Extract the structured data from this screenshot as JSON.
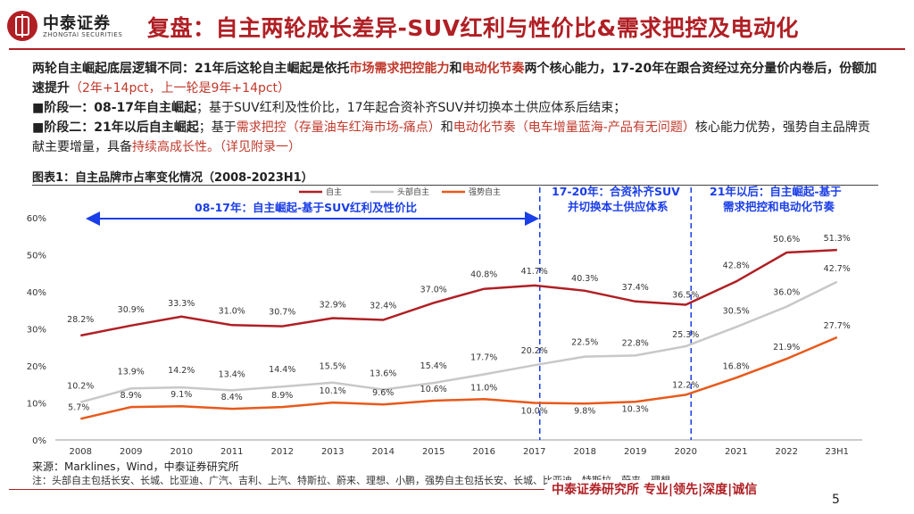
{
  "brand": {
    "name_cn": "中泰证券",
    "name_en": "ZHONGTAI SECURITIES"
  },
  "header": {
    "title": "复盘：自主两轮成长差异-SUV红利与性价比&需求把控及电动化"
  },
  "colors": {
    "accent": "#b01f24",
    "series_main": "#b01f24",
    "series_head": "#c8c8c8",
    "series_strong": "#e8591a",
    "annotation_blue": "#1a3ee8"
  },
  "body": {
    "p1_a": "两轮自主崛起底层逻辑不同：21年后这轮自主崛起是依托",
    "p1_b": "市场需求把控能力",
    "p1_c": "和",
    "p1_d": "电动化节奏",
    "p1_e": "两个核心能力，17-20年在跟合资经过充分量价内卷后，份额加速提升",
    "p1_f": "（2年+14pct，上一轮是9年+14pct）",
    "p2_bullet": "■",
    "p2_a": "阶段一：08-17年自主崛起",
    "p2_b": "；基于SUV红利及性价比，17年起合资补齐SUV并切换本土供应体系后结束；",
    "p3_bullet": "■",
    "p3_a": "阶段二：21年以后自主崛起",
    "p3_b": "；基于",
    "p3_c": "需求把控（存量油车红海市场-痛点）",
    "p3_d": "和",
    "p3_e": "电动化节奏（电车增量蓝海-产品有无问题）",
    "p3_f": "核心能力优势，强势自主品牌贡献主要增量，具备",
    "p3_g": "持续高成长性",
    "p3_h": "。（详见附录一）"
  },
  "figure": {
    "title": "图表1：自主品牌市占率变化情况（2008-2023H1）"
  },
  "annotations": {
    "phase1": "08-17年：自主崛起-基于SUV红利及性价比",
    "phase2_l1": "17-20年：合资补齐SUV",
    "phase2_l2": "并切换本土供应体系",
    "phase3_l1": "21年以后：自主崛起-基于",
    "phase3_l2": "需求把控和电动化节奏"
  },
  "chart_data": {
    "type": "line",
    "title": "图表1：自主品牌市占率变化情况（2008-2023H1）",
    "categories": [
      "2008",
      "2009",
      "2010",
      "2011",
      "2012",
      "2013",
      "2014",
      "2015",
      "2016",
      "2017",
      "2018",
      "2019",
      "2020",
      "2021",
      "2022",
      "23H1"
    ],
    "series": [
      {
        "name": "自主",
        "color": "#b01f24",
        "values": [
          28.2,
          30.9,
          33.3,
          31.0,
          30.7,
          32.9,
          32.4,
          37.0,
          40.8,
          41.7,
          40.3,
          37.4,
          36.5,
          42.8,
          50.6,
          51.3
        ],
        "labels": [
          "28.2%",
          "30.9%",
          "33.3%",
          "31.0%",
          "30.7%",
          "32.9%",
          "32.4%",
          "37.0%",
          "40.8%",
          "41.7%",
          "40.3%",
          "37.4%",
          "36.5%",
          "42.8%",
          "50.6%",
          "51.3%"
        ]
      },
      {
        "name": "头部自主",
        "color": "#c8c8c8",
        "values": [
          10.2,
          13.9,
          14.2,
          13.4,
          14.4,
          15.5,
          13.6,
          15.4,
          17.7,
          20.2,
          22.5,
          22.8,
          25.3,
          30.5,
          36.0,
          42.7
        ],
        "labels": [
          "10.2%",
          "13.9%",
          "14.2%",
          "13.4%",
          "14.4%",
          "15.5%",
          "13.6%",
          "15.4%",
          "17.7%",
          "20.2%",
          "22.5%",
          "22.8%",
          "25.3%",
          "30.5%",
          "36.0%",
          "42.7%"
        ]
      },
      {
        "name": "强势自主",
        "color": "#e8591a",
        "values": [
          5.7,
          8.9,
          9.1,
          8.4,
          8.9,
          10.1,
          9.6,
          10.6,
          11.0,
          10.0,
          9.8,
          10.3,
          12.2,
          16.8,
          21.9,
          27.7
        ],
        "labels": [
          "5.7%",
          "8.9%",
          "9.1%",
          "8.4%",
          "8.9%",
          "10.1%",
          "9.6%",
          "10.6%",
          "11.0%",
          "10.0%",
          "9.8%",
          "10.3%",
          "12.2%",
          "16.8%",
          "21.9%",
          "27.7%"
        ]
      }
    ],
    "yticks": [
      "0%",
      "10%",
      "20%",
      "30%",
      "40%",
      "50%",
      "60%"
    ],
    "ylim": [
      0,
      60
    ],
    "grid": false,
    "legend": "top-center",
    "phase_dividers_after": [
      "2017",
      "2020"
    ]
  },
  "source": "来源：Marklines，Wind，中泰证券研究所",
  "note": "注：头部自主包括长安、长城、比亚迪、广汽、吉利、上汽、特斯拉、蔚来、理想、小鹏，强势自主包括长安、长城、比亚迪、特斯拉、蔚来、理想",
  "footer": {
    "text": "中泰证券研究所 专业|领先|深度|诚信",
    "page": "5"
  }
}
